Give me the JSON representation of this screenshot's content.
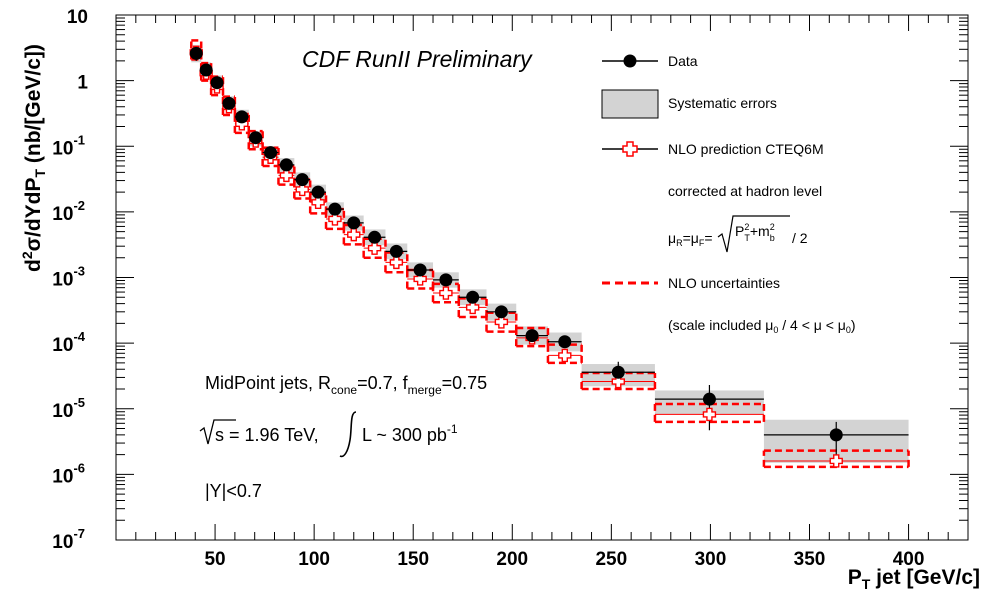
{
  "chart_data": {
    "type": "scatter",
    "title": "CDF RunII Preliminary",
    "xlabel": "P_T jet [GeV/c]",
    "ylabel": "d²σ/dYdP_T (nb/[GeV/c])",
    "xlim": [
      0,
      430
    ],
    "ylim": [
      1e-07,
      10
    ],
    "ylog": true,
    "x_ticks": [
      "50",
      "100",
      "150",
      "200",
      "250",
      "300",
      "350",
      "400"
    ],
    "y_ticks": [
      {
        "base": "10",
        "exp": ""
      },
      {
        "base": "1",
        "exp": ""
      },
      {
        "base": "10",
        "exp": "-1"
      },
      {
        "base": "10",
        "exp": "-2"
      },
      {
        "base": "10",
        "exp": "-3"
      },
      {
        "base": "10",
        "exp": "-4"
      },
      {
        "base": "10",
        "exp": "-5"
      },
      {
        "base": "10",
        "exp": "-6"
      },
      {
        "base": "10",
        "exp": "-7"
      }
    ],
    "bins": [
      {
        "xlo": 38,
        "xhi": 43,
        "x": 40.5,
        "data": 2.6,
        "err_lo": 2.0,
        "err_hi": 3.3,
        "sys_lo": 1.9,
        "sys_hi": 3.5,
        "nlo": 2.7,
        "nlo_lo": 2.1,
        "nlo_hi": 4.1
      },
      {
        "xlo": 43,
        "xhi": 48,
        "x": 45.5,
        "data": 1.45,
        "err_lo": 1.15,
        "err_hi": 1.8,
        "sys_lo": 1.1,
        "sys_hi": 1.9,
        "nlo": 1.3,
        "nlo_lo": 1.0,
        "nlo_hi": 1.85
      },
      {
        "xlo": 48,
        "xhi": 54,
        "x": 51,
        "data": 0.93,
        "err_lo": 0.75,
        "err_hi": 1.15,
        "sys_lo": 0.72,
        "sys_hi": 1.2,
        "nlo": 0.8,
        "nlo_lo": 0.6,
        "nlo_hi": 1.15
      },
      {
        "xlo": 54,
        "xhi": 60,
        "x": 57,
        "data": 0.45,
        "err_lo": 0.37,
        "err_hi": 0.55,
        "sys_lo": 0.35,
        "sys_hi": 0.58,
        "nlo": 0.4,
        "nlo_lo": 0.3,
        "nlo_hi": 0.57
      },
      {
        "xlo": 60,
        "xhi": 67,
        "x": 63.5,
        "data": 0.28,
        "err_lo": 0.23,
        "err_hi": 0.34,
        "sys_lo": 0.22,
        "sys_hi": 0.36,
        "nlo": 0.22,
        "nlo_lo": 0.16,
        "nlo_hi": 0.31
      },
      {
        "xlo": 67,
        "xhi": 74,
        "x": 70.5,
        "data": 0.135,
        "err_lo": 0.11,
        "err_hi": 0.165,
        "sys_lo": 0.1,
        "sys_hi": 0.17,
        "nlo": 0.12,
        "nlo_lo": 0.09,
        "nlo_hi": 0.17
      },
      {
        "xlo": 74,
        "xhi": 82,
        "x": 78,
        "data": 0.08,
        "err_lo": 0.066,
        "err_hi": 0.097,
        "sys_lo": 0.062,
        "sys_hi": 0.1,
        "nlo": 0.068,
        "nlo_lo": 0.05,
        "nlo_hi": 0.095
      },
      {
        "xlo": 82,
        "xhi": 90,
        "x": 86,
        "data": 0.052,
        "err_lo": 0.043,
        "err_hi": 0.063,
        "sys_lo": 0.04,
        "sys_hi": 0.066,
        "nlo": 0.036,
        "nlo_lo": 0.026,
        "nlo_hi": 0.05
      },
      {
        "xlo": 90,
        "xhi": 98,
        "x": 94,
        "data": 0.031,
        "err_lo": 0.026,
        "err_hi": 0.037,
        "sys_lo": 0.024,
        "sys_hi": 0.04,
        "nlo": 0.022,
        "nlo_lo": 0.016,
        "nlo_hi": 0.031
      },
      {
        "xlo": 98,
        "xhi": 106,
        "x": 102,
        "data": 0.02,
        "err_lo": 0.017,
        "err_hi": 0.024,
        "sys_lo": 0.015,
        "sys_hi": 0.026,
        "nlo": 0.014,
        "nlo_lo": 0.0095,
        "nlo_hi": 0.019
      },
      {
        "xlo": 106,
        "xhi": 115,
        "x": 110.5,
        "data": 0.011,
        "err_lo": 0.0093,
        "err_hi": 0.013,
        "sys_lo": 0.0085,
        "sys_hi": 0.014,
        "nlo": 0.0078,
        "nlo_lo": 0.0055,
        "nlo_hi": 0.011
      },
      {
        "xlo": 115,
        "xhi": 125,
        "x": 120,
        "data": 0.0068,
        "err_lo": 0.0057,
        "err_hi": 0.0081,
        "sys_lo": 0.0052,
        "sys_hi": 0.0088,
        "nlo": 0.0045,
        "nlo_lo": 0.0032,
        "nlo_hi": 0.0063
      },
      {
        "xlo": 125,
        "xhi": 136,
        "x": 130.5,
        "data": 0.0041,
        "err_lo": 0.0034,
        "err_hi": 0.0049,
        "sys_lo": 0.0031,
        "sys_hi": 0.0054,
        "nlo": 0.0028,
        "nlo_lo": 0.002,
        "nlo_hi": 0.0039
      },
      {
        "xlo": 136,
        "xhi": 147,
        "x": 141.5,
        "data": 0.0025,
        "err_lo": 0.0021,
        "err_hi": 0.003,
        "sys_lo": 0.0019,
        "sys_hi": 0.0033,
        "nlo": 0.0017,
        "nlo_lo": 0.0012,
        "nlo_hi": 0.0024
      },
      {
        "xlo": 147,
        "xhi": 160,
        "x": 153.5,
        "data": 0.0013,
        "err_lo": 0.00109,
        "err_hi": 0.00155,
        "sys_lo": 0.001,
        "sys_hi": 0.0017,
        "nlo": 0.00095,
        "nlo_lo": 0.00068,
        "nlo_hi": 0.0013
      },
      {
        "xlo": 160,
        "xhi": 173,
        "x": 166.5,
        "data": 0.00092,
        "err_lo": 0.00077,
        "err_hi": 0.0011,
        "sys_lo": 0.0007,
        "sys_hi": 0.0012,
        "nlo": 0.00058,
        "nlo_lo": 0.00042,
        "nlo_hi": 0.0008
      },
      {
        "xlo": 173,
        "xhi": 187,
        "x": 180,
        "data": 0.0005,
        "err_lo": 0.00042,
        "err_hi": 0.0006,
        "sys_lo": 0.00038,
        "sys_hi": 0.00066,
        "nlo": 0.00035,
        "nlo_lo": 0.00025,
        "nlo_hi": 0.00048
      },
      {
        "xlo": 187,
        "xhi": 202,
        "x": 194.5,
        "data": 0.0003,
        "err_lo": 0.00025,
        "err_hi": 0.00036,
        "sys_lo": 0.00022,
        "sys_hi": 0.0004,
        "nlo": 0.00021,
        "nlo_lo": 0.00015,
        "nlo_hi": 0.00029
      },
      {
        "xlo": 202,
        "xhi": 218,
        "x": 210,
        "data": 0.00013,
        "err_lo": 0.000105,
        "err_hi": 0.00016,
        "sys_lo": 9.5e-05,
        "sys_hi": 0.00018,
        "nlo": 0.00012,
        "nlo_lo": 9e-05,
        "nlo_hi": 0.00017
      },
      {
        "xlo": 218,
        "xhi": 235,
        "x": 226.5,
        "data": 0.000105,
        "err_lo": 8.5e-05,
        "err_hi": 0.00013,
        "sys_lo": 7.5e-05,
        "sys_hi": 0.000145,
        "nlo": 6.5e-05,
        "nlo_lo": 5e-05,
        "nlo_hi": 9.5e-05
      },
      {
        "xlo": 235,
        "xhi": 272,
        "x": 253.5,
        "data": 3.6e-05,
        "err_lo": 2.6e-05,
        "err_hi": 5.2e-05,
        "sys_lo": 2.2e-05,
        "sys_hi": 4.8e-05,
        "nlo": 2.6e-05,
        "nlo_lo": 2e-05,
        "nlo_hi": 3.5e-05
      },
      {
        "xlo": 272,
        "xhi": 327,
        "x": 299.5,
        "data": 1.4e-05,
        "err_lo": 4.7e-06,
        "err_hi": 2.3e-05,
        "sys_lo": 8.2e-06,
        "sys_hi": 1.9e-05,
        "nlo": 8.2e-06,
        "nlo_lo": 6.3e-06,
        "nlo_hi": 1.18e-05
      },
      {
        "xlo": 327,
        "xhi": 400,
        "x": 363.5,
        "data": 4e-06,
        "err_lo": 1.6e-06,
        "err_hi": 6.3e-06,
        "sys_lo": 1.5e-06,
        "sys_hi": 6.8e-06,
        "nlo": 1.6e-06,
        "nlo_lo": 1.3e-06,
        "nlo_hi": 2.3e-06
      }
    ],
    "legend": {
      "placement": "top-right",
      "data": "Data",
      "systematic": "Systematic errors",
      "nlo": "NLO prediction CTEQ6M",
      "corrected": "corrected at hadron level",
      "scale_formula": "μR=μF=√(PT²+mb²) / 2",
      "nlo_unc": "NLO uncertainties",
      "scale_range": "(scale included μ0 / 4 < μ < μ0)"
    },
    "annotations": {
      "jets": "MidPoint jets, Rcone=0.7, fmerge=0.75",
      "energy": "√s = 1.96 TeV, ∫ L ~ 300 pb-1",
      "rapidity": "|Y|<0.7"
    },
    "colors": {
      "data": "#000000",
      "systematic_fill": "#d3d3d3",
      "nlo": "#ff0000"
    }
  }
}
